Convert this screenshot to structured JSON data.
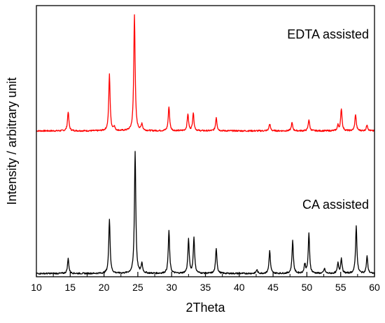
{
  "chart_data": {
    "type": "line",
    "xlabel": "2Theta",
    "ylabel": "Intensity / arbitrary unit",
    "xlim": [
      10,
      60
    ],
    "ylim": [
      0,
      100
    ],
    "x_ticks": [
      10,
      15,
      20,
      25,
      30,
      35,
      40,
      45,
      50,
      55,
      60
    ],
    "x_tick_labels": [
      "10",
      "15",
      "20",
      "25",
      "30",
      "35",
      "40",
      "45",
      "50",
      "55",
      "60"
    ],
    "y_ticks_shown": false,
    "grid": false,
    "legend": "none",
    "annotations": [
      {
        "text": "EDTA assisted",
        "series": "EDTA assisted"
      },
      {
        "text": "CA assisted",
        "series": "CA assisted"
      }
    ],
    "series": [
      {
        "name": "EDTA assisted",
        "color": "#ff0000",
        "baseline": 53.8,
        "peaks": [
          [
            14.7,
            7.1
          ],
          [
            20.8,
            20.8
          ],
          [
            21.5,
            1.5
          ],
          [
            24.5,
            43.0
          ],
          [
            25.6,
            2.5
          ],
          [
            29.6,
            9.0
          ],
          [
            32.4,
            6.2
          ],
          [
            33.2,
            6.6
          ],
          [
            36.6,
            5.0
          ],
          [
            44.5,
            2.6
          ],
          [
            47.8,
            3.0
          ],
          [
            50.3,
            4.2
          ],
          [
            54.6,
            2.0
          ],
          [
            55.1,
            8.2
          ],
          [
            57.2,
            6.1
          ],
          [
            58.9,
            2.3
          ]
        ]
      },
      {
        "name": "CA assisted",
        "color": "#000000",
        "baseline": 1.2,
        "peaks": [
          [
            14.7,
            5.5
          ],
          [
            20.8,
            20.2
          ],
          [
            24.6,
            45.0
          ],
          [
            25.6,
            3.6
          ],
          [
            29.6,
            15.8
          ],
          [
            32.5,
            12.4
          ],
          [
            33.3,
            13.2
          ],
          [
            36.6,
            9.3
          ],
          [
            42.6,
            1.4
          ],
          [
            44.5,
            8.4
          ],
          [
            47.9,
            12.0
          ],
          [
            49.7,
            3.4
          ],
          [
            50.3,
            14.6
          ],
          [
            52.6,
            1.8
          ],
          [
            54.6,
            3.7
          ],
          [
            55.1,
            5.5
          ],
          [
            57.3,
            17.4
          ],
          [
            58.9,
            6.3
          ]
        ]
      }
    ]
  }
}
